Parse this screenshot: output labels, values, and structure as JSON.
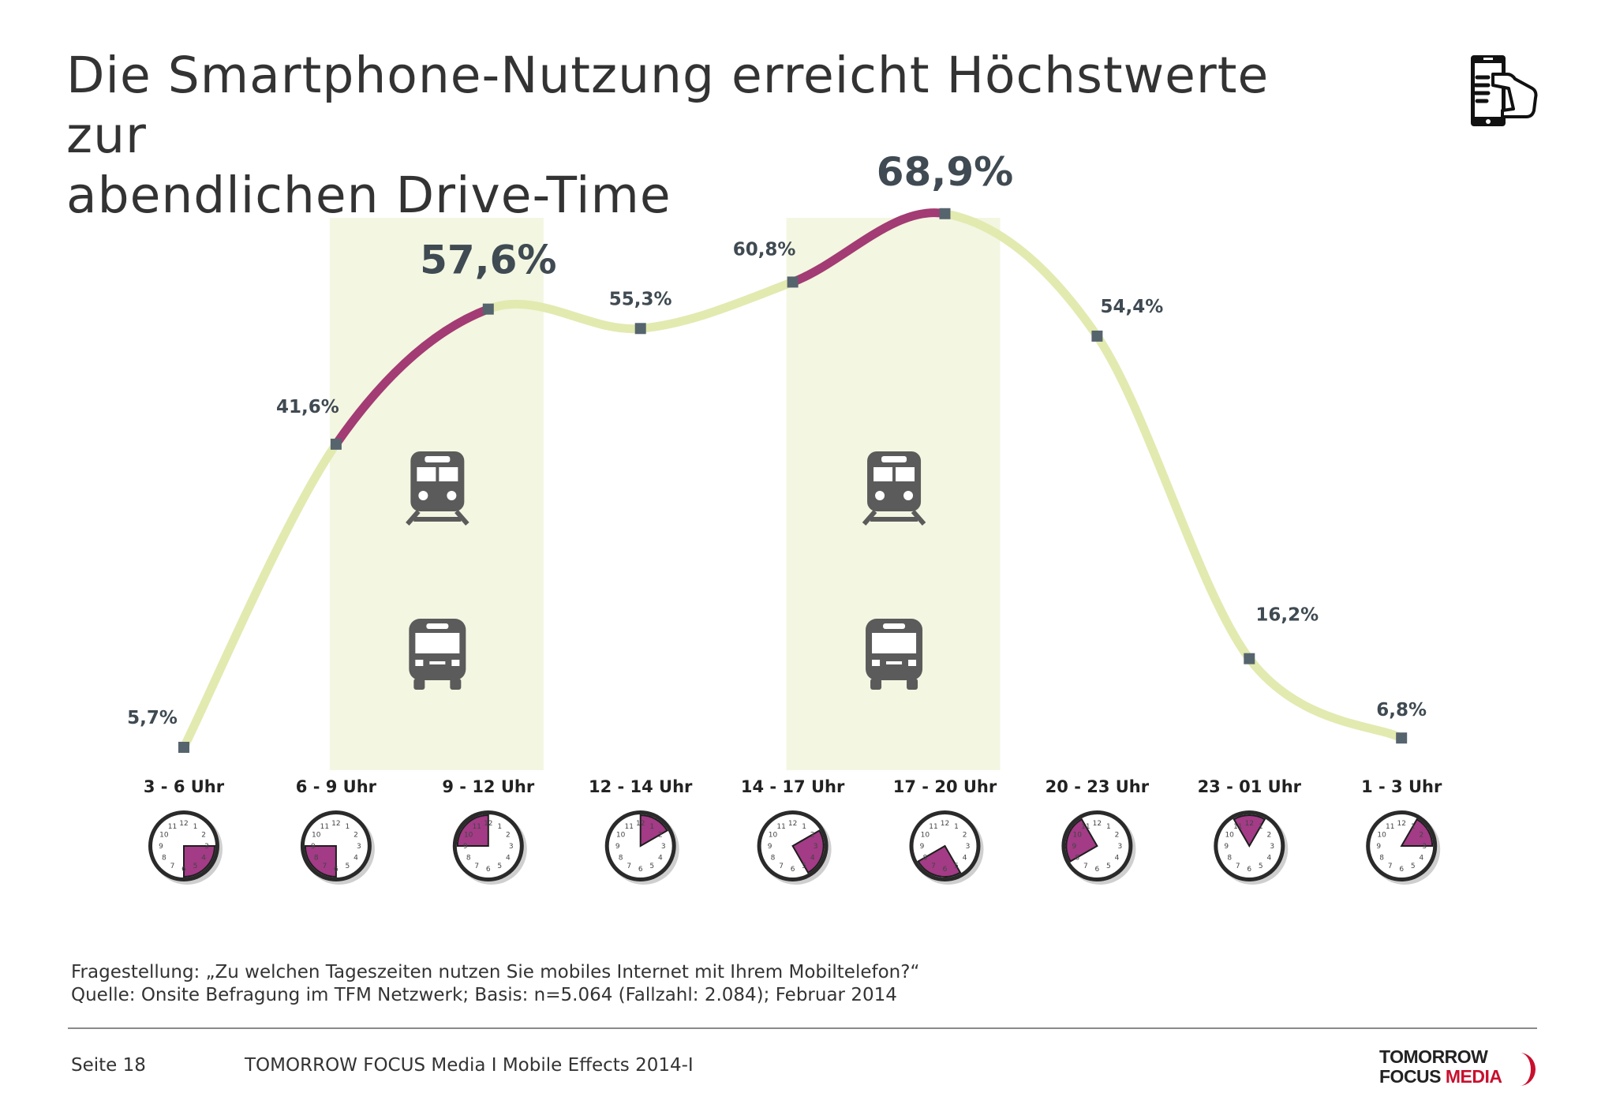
{
  "title": {
    "line1": "Die Smartphone-Nutzung erreicht Höchstwerte zur",
    "line2": "abendlichen Drive-Time"
  },
  "header_icon": "hand-holding-smartphone-icon",
  "chart_data": {
    "type": "line",
    "categories": [
      "3 - 6 Uhr",
      "6 - 9 Uhr",
      "9 - 12 Uhr",
      "12 - 14 Uhr",
      "14 - 17 Uhr",
      "17 - 20 Uhr",
      "20 - 23 Uhr",
      "23 - 01 Uhr",
      "1 - 3 Uhr"
    ],
    "values": [
      5.7,
      41.6,
      57.6,
      55.3,
      60.8,
      68.9,
      54.4,
      16.2,
      6.8
    ],
    "value_labels": [
      "5,7%",
      "41,6%",
      "57,6%",
      "55,3%",
      "60,8%",
      "68,9%",
      "54,4%",
      "16,2%",
      "6,8%"
    ],
    "emphasized_labels": [
      2,
      5
    ],
    "highlighted_segments": [
      [
        1,
        2
      ],
      [
        4,
        5
      ]
    ],
    "highlighted_bands": [
      [
        1,
        2
      ],
      [
        4,
        5
      ]
    ],
    "band_icons": [
      "train-icon",
      "bus-icon"
    ],
    "clock_icons": "clock-icon",
    "ylim": [
      0,
      75
    ],
    "grid": false,
    "legend": "none",
    "colors": {
      "line": "#e2eab0",
      "highlight_line": "#a33b74",
      "band": "#f3f6e1",
      "marker": "#56646e",
      "label": "#3f4a52",
      "clock_fill": "#a33b86"
    }
  },
  "footnote": {
    "question": "Fragestellung: „Zu welchen Tageszeiten nutzen Sie mobiles Internet mit Ihrem Mobiltelefon?“",
    "source": "Quelle: Onsite Befragung im TFM Netzwerk; Basis: n=5.064 (Fallzahl: 2.084); Februar 2014"
  },
  "footer": {
    "page": "Seite 18",
    "report": "TOMORROW FOCUS Media  I  Mobile Effects 2014-I",
    "logo_line1": "TOMORROW",
    "logo_line2a": "FOCUS ",
    "logo_line2b": "MEDIA"
  }
}
